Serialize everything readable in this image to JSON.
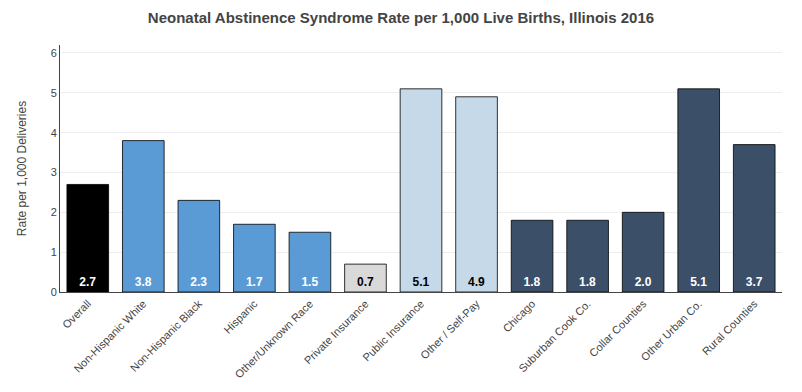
{
  "chart_data": {
    "type": "bar",
    "title": "Neonatal Abstinence Syndrome Rate per 1,000 Live Births, Illinois 2016",
    "ylabel": "Rate per 1,000 Deliveries",
    "categories": [
      "Overall",
      "Non-Hispanic White",
      "Non-Hispanic Black",
      "Hispanic",
      "Other/Unknown Race",
      "Private Insurance",
      "Public Insurance",
      "Other / Self-Pay",
      "Chicago",
      "Suburban Cook Co.",
      "Collar Counties",
      "Other Urban Co.",
      "Rural Counties"
    ],
    "values": [
      2.7,
      3.8,
      2.3,
      1.7,
      1.5,
      0.7,
      5.1,
      4.9,
      1.8,
      1.8,
      2.0,
      5.1,
      3.7
    ],
    "value_labels": [
      "2.7",
      "3.8",
      "2.3",
      "1.7",
      "1.5",
      "0.7",
      "5.1",
      "4.9",
      "1.8",
      "1.8",
      "2.0",
      "5.1",
      "3.7"
    ],
    "colors": [
      "#000000",
      "#5B9BD5",
      "#5B9BD5",
      "#5B9BD5",
      "#5B9BD5",
      "#D9D9D9",
      "#C5D9E8",
      "#C5D9E8",
      "#3B5068",
      "#3B5068",
      "#3B5068",
      "#3B5068",
      "#3B5068"
    ],
    "ylim": [
      0,
      6.2
    ],
    "yticks": [
      0,
      1,
      2,
      3,
      4,
      5,
      6
    ],
    "grid": true,
    "data_labels": true
  }
}
